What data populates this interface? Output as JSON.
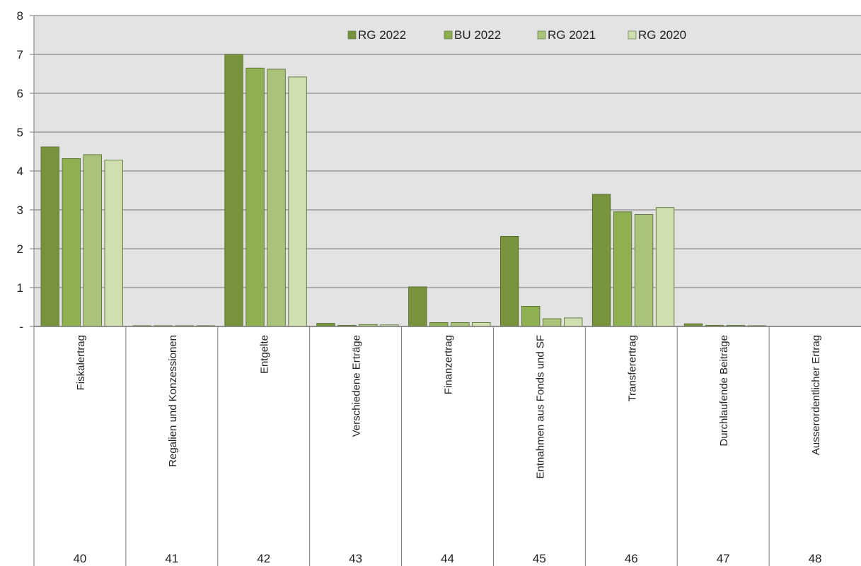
{
  "chart_data": {
    "type": "bar",
    "title": "",
    "xlabel": "",
    "ylabel": "",
    "ylim": [
      0,
      8
    ],
    "yticks": [
      0,
      1,
      2,
      3,
      4,
      5,
      6,
      7,
      8
    ],
    "ytick_labels": [
      "-",
      "1",
      "2",
      "3",
      "4",
      "5",
      "6",
      "7",
      "8"
    ],
    "grid": true,
    "legend_position": "top-right",
    "categories": [
      "Fiskalertrag",
      "Regalien und Konzessionen",
      "Entgelte",
      "Verschiedene Erträge",
      "Finanzertrag",
      "Entnahmen aus Fonds und SF",
      "Transferertrag",
      "Durchlaufende Beiträge",
      "Ausserordentlicher Ertrag"
    ],
    "category_codes": [
      "40",
      "41",
      "42",
      "43",
      "44",
      "45",
      "46",
      "47",
      "48"
    ],
    "series": [
      {
        "name": "RG 2022",
        "color": "#77933c",
        "values": [
          4.62,
          0.02,
          7.0,
          0.08,
          1.02,
          2.32,
          3.4,
          0.07,
          0.0
        ]
      },
      {
        "name": "BU 2022",
        "color": "#8fb050",
        "values": [
          4.32,
          0.02,
          6.65,
          0.03,
          0.1,
          0.52,
          2.95,
          0.03,
          0.0
        ]
      },
      {
        "name": "RG 2021",
        "color": "#a9c47a",
        "values": [
          4.42,
          0.02,
          6.62,
          0.05,
          0.1,
          0.2,
          2.88,
          0.03,
          0.0
        ]
      },
      {
        "name": "RG 2020",
        "color": "#cfdfb0",
        "values": [
          4.28,
          0.02,
          6.42,
          0.04,
          0.1,
          0.22,
          3.06,
          0.02,
          0.0
        ]
      }
    ]
  }
}
